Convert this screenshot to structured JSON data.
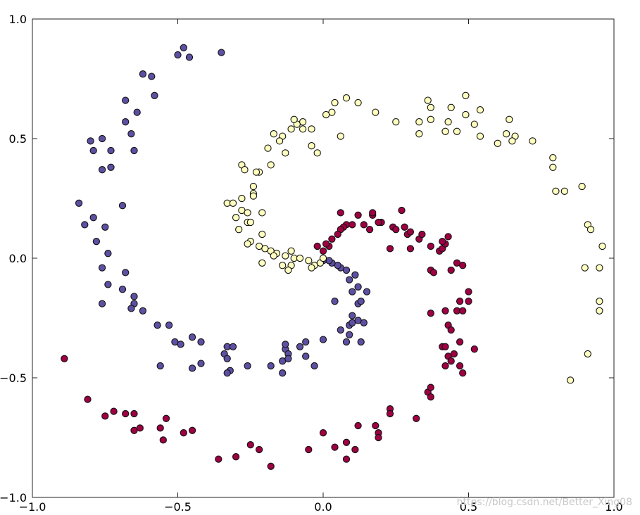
{
  "chart_data": {
    "type": "scatter",
    "title": "",
    "xlabel": "",
    "ylabel": "",
    "xlim": [
      -1.0,
      1.0
    ],
    "ylim": [
      -1.0,
      1.0
    ],
    "grid": false,
    "legend": "none",
    "x_ticks": [
      {
        "value": -1.0,
        "label": "−1.0"
      },
      {
        "value": -0.5,
        "label": "−0.5"
      },
      {
        "value": 0.0,
        "label": "0.0"
      },
      {
        "value": 0.5,
        "label": "0.5"
      },
      {
        "value": 1.0,
        "label": "1.0"
      }
    ],
    "y_ticks": [
      {
        "value": 1.0,
        "label": "1.0"
      },
      {
        "value": 0.5,
        "label": "0.5"
      },
      {
        "value": 0.0,
        "label": "0.0"
      },
      {
        "value": -0.5,
        "label": "−0.5"
      },
      {
        "value": -1.0,
        "label": "−1.0"
      }
    ],
    "series": [
      {
        "color": "#5e4fa2",
        "points": [
          [
            -0.48,
            0.88
          ],
          [
            -0.5,
            0.85
          ],
          [
            -0.46,
            0.84
          ],
          [
            -0.35,
            0.86
          ],
          [
            -0.62,
            0.77
          ],
          [
            -0.59,
            0.76
          ],
          [
            -0.58,
            0.68
          ],
          [
            -0.68,
            0.66
          ],
          [
            -0.64,
            0.61
          ],
          [
            -0.68,
            0.57
          ],
          [
            -0.66,
            0.52
          ],
          [
            -0.8,
            0.49
          ],
          [
            -0.76,
            0.5
          ],
          [
            -0.79,
            0.45
          ],
          [
            -0.73,
            0.45
          ],
          [
            -0.65,
            0.45
          ],
          [
            -0.76,
            0.37
          ],
          [
            -0.73,
            0.38
          ],
          [
            -0.84,
            0.23
          ],
          [
            -0.69,
            0.22
          ],
          [
            -0.79,
            0.17
          ],
          [
            -0.82,
            0.14
          ],
          [
            -0.75,
            0.13
          ],
          [
            -0.78,
            0.07
          ],
          [
            -0.74,
            0.02
          ],
          [
            -0.76,
            -0.04
          ],
          [
            -0.68,
            -0.06
          ],
          [
            -0.74,
            -0.11
          ],
          [
            -0.69,
            -0.13
          ],
          [
            -0.65,
            -0.16
          ],
          [
            -0.76,
            -0.19
          ],
          [
            -0.65,
            -0.19
          ],
          [
            -0.66,
            -0.21
          ],
          [
            -0.62,
            -0.22
          ],
          [
            -0.57,
            -0.28
          ],
          [
            -0.53,
            -0.28
          ],
          [
            -0.51,
            -0.35
          ],
          [
            -0.49,
            -0.36
          ],
          [
            -0.45,
            -0.33
          ],
          [
            -0.42,
            -0.35
          ],
          [
            -0.56,
            -0.45
          ],
          [
            -0.45,
            -0.46
          ],
          [
            -0.42,
            -0.44
          ],
          [
            -0.33,
            -0.37
          ],
          [
            -0.31,
            -0.37
          ],
          [
            -0.34,
            -0.4
          ],
          [
            -0.33,
            -0.42
          ],
          [
            -0.32,
            -0.47
          ],
          [
            -0.33,
            -0.48
          ],
          [
            -0.26,
            -0.45
          ],
          [
            -0.18,
            -0.45
          ],
          [
            -0.14,
            -0.43
          ],
          [
            -0.13,
            -0.38
          ],
          [
            -0.12,
            -0.4
          ],
          [
            -0.13,
            -0.36
          ],
          [
            -0.12,
            -0.42
          ],
          [
            -0.08,
            -0.37
          ],
          [
            -0.06,
            -0.35
          ],
          [
            -0.06,
            -0.41
          ],
          [
            -0.03,
            -0.45
          ],
          [
            0.0,
            -0.34
          ],
          [
            -0.14,
            -0.48
          ],
          [
            0.04,
            -0.18
          ],
          [
            0.06,
            -0.3
          ],
          [
            0.08,
            -0.35
          ],
          [
            0.09,
            -0.32
          ],
          [
            0.09,
            -0.28
          ],
          [
            0.1,
            -0.27
          ],
          [
            0.1,
            -0.24
          ],
          [
            0.12,
            -0.26
          ],
          [
            0.13,
            -0.35
          ],
          [
            0.14,
            -0.27
          ],
          [
            0.12,
            -0.19
          ],
          [
            0.13,
            -0.18
          ],
          [
            0.1,
            -0.14
          ],
          [
            0.12,
            -0.12
          ],
          [
            0.15,
            -0.14
          ],
          [
            0.09,
            -0.09
          ],
          [
            0.11,
            -0.07
          ],
          [
            0.08,
            -0.05
          ],
          [
            0.06,
            -0.04
          ],
          [
            0.05,
            -0.03
          ],
          [
            0.03,
            -0.02
          ],
          [
            0.02,
            -0.01
          ],
          [
            0.0,
            -0.01
          ]
        ]
      },
      {
        "color": "#ffffbf",
        "points": [
          [
            0.49,
            0.68
          ],
          [
            0.36,
            0.66
          ],
          [
            0.44,
            0.63
          ],
          [
            0.37,
            0.63
          ],
          [
            0.54,
            0.62
          ],
          [
            0.49,
            0.6
          ],
          [
            0.33,
            0.57
          ],
          [
            0.37,
            0.58
          ],
          [
            0.43,
            0.57
          ],
          [
            0.52,
            0.56
          ],
          [
            0.42,
            0.53
          ],
          [
            0.46,
            0.53
          ],
          [
            0.64,
            0.58
          ],
          [
            0.66,
            0.51
          ],
          [
            0.63,
            0.52
          ],
          [
            0.33,
            0.52
          ],
          [
            0.65,
            0.49
          ],
          [
            0.6,
            0.48
          ],
          [
            0.54,
            0.51
          ],
          [
            0.72,
            0.49
          ],
          [
            0.08,
            0.67
          ],
          [
            0.12,
            0.65
          ],
          [
            0.04,
            0.65
          ],
          [
            0.18,
            0.61
          ],
          [
            0.25,
            0.57
          ],
          [
            0.03,
            0.61
          ],
          [
            0.01,
            0.6
          ],
          [
            -0.07,
            0.57
          ],
          [
            -0.09,
            0.56
          ],
          [
            -0.1,
            0.58
          ],
          [
            -0.11,
            0.54
          ],
          [
            -0.07,
            0.54
          ],
          [
            -0.04,
            0.54
          ],
          [
            -0.14,
            0.51
          ],
          [
            -0.17,
            0.52
          ],
          [
            -0.15,
            0.49
          ],
          [
            0.06,
            0.51
          ],
          [
            -0.04,
            0.47
          ],
          [
            -0.19,
            0.46
          ],
          [
            -0.13,
            0.44
          ],
          [
            -0.02,
            0.44
          ],
          [
            -0.18,
            0.39
          ],
          [
            -0.28,
            0.39
          ],
          [
            -0.27,
            0.37
          ],
          [
            -0.22,
            0.36
          ],
          [
            -0.23,
            0.36
          ],
          [
            -0.24,
            0.3
          ],
          [
            -0.24,
            0.27
          ],
          [
            -0.24,
            0.26
          ],
          [
            -0.28,
            0.25
          ],
          [
            -0.33,
            0.23
          ],
          [
            -0.31,
            0.23
          ],
          [
            -0.28,
            0.2
          ],
          [
            -0.26,
            0.19
          ],
          [
            -0.21,
            0.19
          ],
          [
            -0.3,
            0.17
          ],
          [
            -0.26,
            0.15
          ],
          [
            -0.25,
            0.15
          ],
          [
            -0.29,
            0.12
          ],
          [
            -0.21,
            0.1
          ],
          [
            -0.25,
            0.07
          ],
          [
            -0.26,
            0.06
          ],
          [
            -0.22,
            0.05
          ],
          [
            -0.2,
            0.04
          ],
          [
            -0.18,
            0.03
          ],
          [
            -0.16,
            0.02
          ],
          [
            -0.11,
            0.03
          ],
          [
            -0.13,
            0.01
          ],
          [
            -0.17,
            0.01
          ],
          [
            -0.1,
            0.0
          ],
          [
            -0.08,
            0.0
          ],
          [
            -0.05,
            -0.01
          ],
          [
            -0.21,
            -0.02
          ],
          [
            -0.14,
            -0.03
          ],
          [
            -0.11,
            -0.03
          ],
          [
            -0.12,
            -0.05
          ],
          [
            -0.03,
            -0.03
          ],
          [
            -0.04,
            -0.04
          ],
          [
            -0.01,
            -0.02
          ],
          [
            0.0,
            0.0
          ],
          [
            0.79,
            0.42
          ],
          [
            0.79,
            0.38
          ],
          [
            0.8,
            0.28
          ],
          [
            0.83,
            0.28
          ],
          [
            0.89,
            0.3
          ],
          [
            0.91,
            0.14
          ],
          [
            0.92,
            0.12
          ],
          [
            0.96,
            0.05
          ],
          [
            0.95,
            -0.04
          ],
          [
            0.9,
            -0.04
          ],
          [
            0.95,
            -0.18
          ],
          [
            0.95,
            -0.22
          ],
          [
            0.91,
            -0.4
          ],
          [
            0.85,
            -0.51
          ]
        ]
      },
      {
        "color": "#9e0142",
        "points": [
          [
            -0.89,
            -0.42
          ],
          [
            -0.81,
            -0.59
          ],
          [
            -0.75,
            -0.66
          ],
          [
            -0.72,
            -0.64
          ],
          [
            -0.68,
            -0.65
          ],
          [
            -0.65,
            -0.65
          ],
          [
            -0.65,
            -0.72
          ],
          [
            -0.63,
            -0.71
          ],
          [
            -0.56,
            -0.71
          ],
          [
            -0.54,
            -0.67
          ],
          [
            -0.55,
            -0.76
          ],
          [
            -0.48,
            -0.73
          ],
          [
            -0.45,
            -0.72
          ],
          [
            -0.36,
            -0.84
          ],
          [
            -0.3,
            -0.83
          ],
          [
            -0.25,
            -0.78
          ],
          [
            -0.22,
            -0.8
          ],
          [
            -0.18,
            -0.87
          ],
          [
            -0.05,
            -0.8
          ],
          [
            0.0,
            -0.73
          ],
          [
            0.04,
            -0.79
          ],
          [
            0.08,
            -0.77
          ],
          [
            0.08,
            -0.84
          ],
          [
            0.11,
            -0.8
          ],
          [
            0.12,
            -0.7
          ],
          [
            0.18,
            -0.7
          ],
          [
            0.19,
            -0.73
          ],
          [
            0.19,
            -0.75
          ],
          [
            0.23,
            -0.63
          ],
          [
            0.23,
            -0.65
          ],
          [
            0.32,
            -0.67
          ],
          [
            0.36,
            -0.56
          ],
          [
            0.37,
            -0.54
          ],
          [
            0.37,
            -0.58
          ],
          [
            0.41,
            -0.37
          ],
          [
            0.42,
            -0.45
          ],
          [
            0.42,
            -0.37
          ],
          [
            0.43,
            -0.41
          ],
          [
            0.44,
            -0.43
          ],
          [
            0.45,
            -0.4
          ],
          [
            0.47,
            -0.45
          ],
          [
            0.48,
            -0.48
          ],
          [
            0.52,
            -0.38
          ],
          [
            0.47,
            -0.35
          ],
          [
            0.43,
            -0.28
          ],
          [
            0.44,
            -0.3
          ],
          [
            0.46,
            -0.22
          ],
          [
            0.47,
            -0.18
          ],
          [
            0.5,
            -0.18
          ],
          [
            0.48,
            -0.22
          ],
          [
            0.5,
            -0.14
          ],
          [
            0.42,
            -0.22
          ],
          [
            0.37,
            -0.23
          ],
          [
            0.46,
            -0.02
          ],
          [
            0.48,
            -0.03
          ],
          [
            0.44,
            -0.05
          ],
          [
            0.37,
            -0.05
          ],
          [
            0.38,
            -0.06
          ],
          [
            0.4,
            0.03
          ],
          [
            0.41,
            0.04
          ],
          [
            0.42,
            0.06
          ],
          [
            0.43,
            0.09
          ],
          [
            0.41,
            0.07
          ],
          [
            0.33,
            0.08
          ],
          [
            0.37,
            0.05
          ],
          [
            0.3,
            0.04
          ],
          [
            0.29,
            0.1
          ],
          [
            0.3,
            0.11
          ],
          [
            0.28,
            0.13
          ],
          [
            0.34,
            0.1
          ],
          [
            0.24,
            0.13
          ],
          [
            0.25,
            0.12
          ],
          [
            0.2,
            0.15
          ],
          [
            0.19,
            0.15
          ],
          [
            0.16,
            0.12
          ],
          [
            0.14,
            0.14
          ],
          [
            0.12,
            0.18
          ],
          [
            0.17,
            0.18
          ],
          [
            0.17,
            0.19
          ],
          [
            0.27,
            0.2
          ],
          [
            0.08,
            0.14
          ],
          [
            0.07,
            0.13
          ],
          [
            0.06,
            0.12
          ],
          [
            0.1,
            0.14
          ],
          [
            0.05,
            0.1
          ],
          [
            0.03,
            0.08
          ],
          [
            0.02,
            0.05
          ],
          [
            0.01,
            0.06
          ],
          [
            0.0,
            0.03
          ],
          [
            -0.02,
            0.05
          ],
          [
            0.06,
            0.19
          ],
          [
            0.23,
            0.04
          ]
        ]
      }
    ]
  },
  "watermark": "https://blog.csdn.net/Better_Xing08"
}
